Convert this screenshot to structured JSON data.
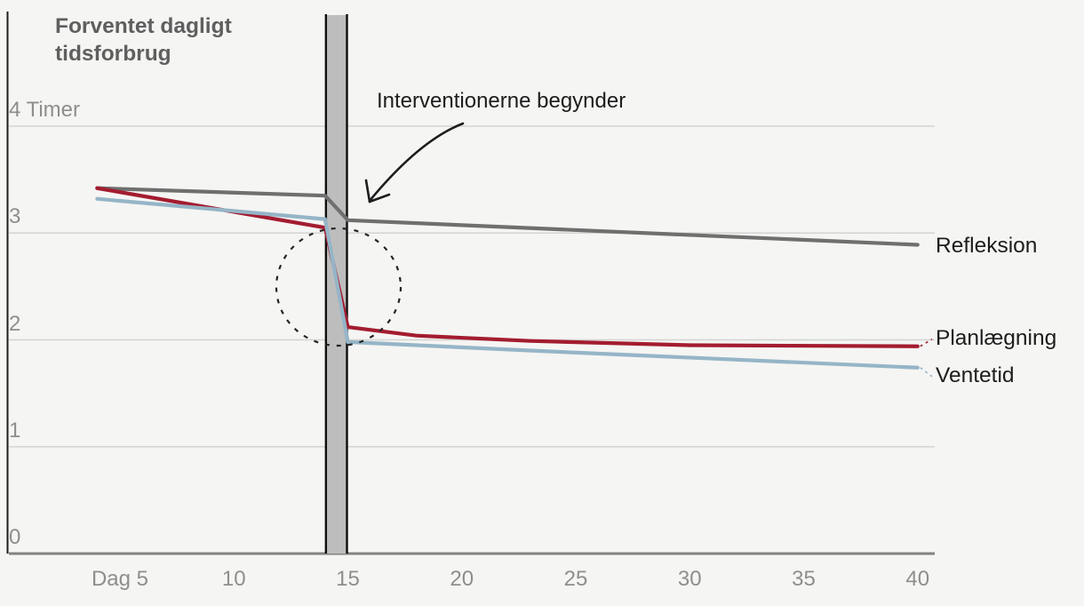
{
  "colors": {
    "background": "#f5f5f3",
    "gridline": "#d4d4d2",
    "zero_axis": "#82827f",
    "left_axis": "#1c1c1c",
    "band_fill": "#bdbdbd",
    "band_edge": "#0e0e0e",
    "tick_text": "#8e8e8e",
    "label_text": "#1d1d1d",
    "title_text": "#5f5f5f"
  },
  "chart_data": {
    "type": "line",
    "title": "Forventet dagligt tidsforbrug",
    "y_unit": "Timer",
    "y_ticks": [
      {
        "value": 4,
        "label": "4 Timer"
      },
      {
        "value": 3,
        "label": "3"
      },
      {
        "value": 2,
        "label": "2"
      },
      {
        "value": 1,
        "label": "1"
      },
      {
        "value": 0,
        "label": "0"
      }
    ],
    "x_ticks": [
      {
        "day": 5,
        "label": "Dag 5"
      },
      {
        "day": 10,
        "label": "10"
      },
      {
        "day": 15,
        "label": "15"
      },
      {
        "day": 20,
        "label": "20"
      },
      {
        "day": 25,
        "label": "25"
      },
      {
        "day": 30,
        "label": "30"
      },
      {
        "day": 35,
        "label": "35"
      },
      {
        "day": 40,
        "label": "40"
      }
    ],
    "ylim": [
      0,
      4
    ],
    "xlim": [
      4,
      40
    ],
    "grid": true,
    "legend_position": "right-of-lines",
    "annotation": {
      "text": "Interventionerne begynder"
    },
    "intervention_band": {
      "day_start": 14,
      "day_end": 15
    },
    "highlight_circle": {
      "day": 14.6,
      "value": 2.5
    },
    "series": [
      {
        "name": "Refleksion",
        "color": "#6f6f6f",
        "points": [
          {
            "day": 4,
            "value": 3.42
          },
          {
            "day": 14,
            "value": 3.35
          },
          {
            "day": 15,
            "value": 3.12
          },
          {
            "day": 40,
            "value": 2.89
          }
        ]
      },
      {
        "name": "Planlægning",
        "color": "#a31c30",
        "points": [
          {
            "day": 4,
            "value": 3.42
          },
          {
            "day": 14,
            "value": 3.05
          },
          {
            "day": 15,
            "value": 2.12
          },
          {
            "day": 18,
            "value": 2.04
          },
          {
            "day": 23,
            "value": 1.99
          },
          {
            "day": 30,
            "value": 1.95
          },
          {
            "day": 40,
            "value": 1.94
          }
        ]
      },
      {
        "name": "Ventetid",
        "color": "#95b5c7",
        "points": [
          {
            "day": 4,
            "value": 3.32
          },
          {
            "day": 14,
            "value": 3.13
          },
          {
            "day": 15,
            "value": 1.98
          },
          {
            "day": 23,
            "value": 1.9
          },
          {
            "day": 40,
            "value": 1.74
          }
        ]
      }
    ]
  }
}
